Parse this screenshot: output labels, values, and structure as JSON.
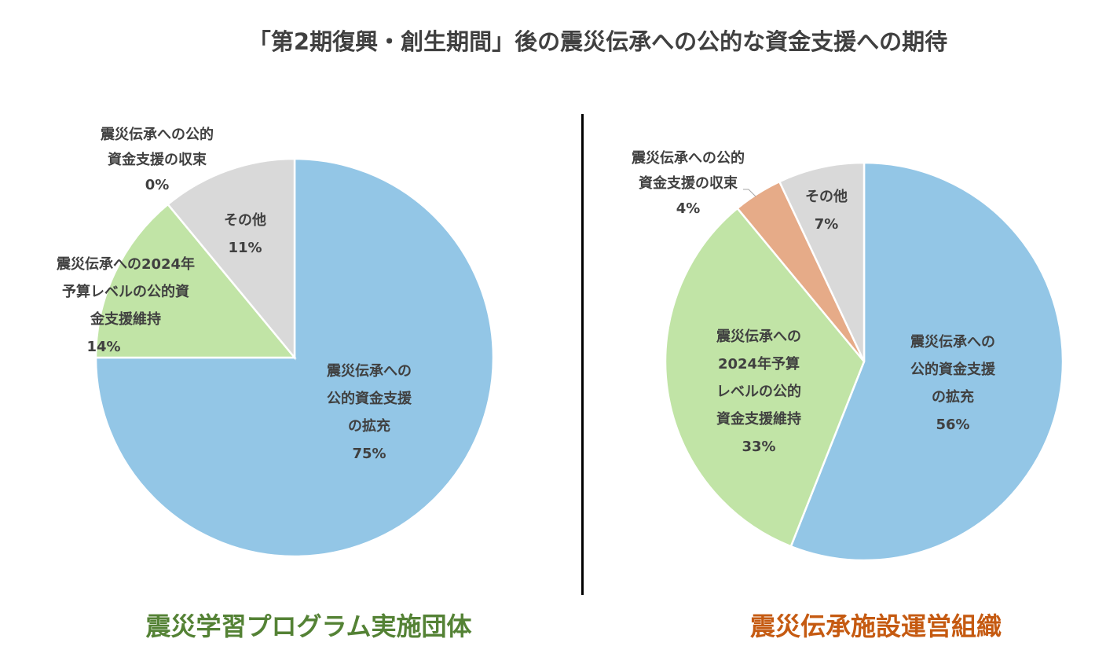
{
  "title": "「第2期復興・創生期間」後の震災伝承への公的な資金支援への期待",
  "chart_data": [
    {
      "type": "pie",
      "title": "震災学習プログラム実施団体",
      "title_color": "#548235",
      "slices": [
        {
          "label_lines": [
            "震災伝承への",
            "公的資金支援",
            "の拡充"
          ],
          "value": 75,
          "pct": "75%",
          "color": "#93C6E6"
        },
        {
          "label_lines": [
            "震災伝承への2024年",
            "予算レベルの公的資",
            "金支援維持"
          ],
          "value": 14,
          "pct": "14%",
          "color": "#C1E4A6"
        },
        {
          "label_lines": [
            "震災伝承への公的",
            "資金支援の収束"
          ],
          "value": 0,
          "pct": "0%",
          "color": "#E6AB88"
        },
        {
          "label_lines": [
            "その他"
          ],
          "value": 11,
          "pct": "11%",
          "color": "#D9D9D9"
        }
      ]
    },
    {
      "type": "pie",
      "title": "震災伝承施設運営組織",
      "title_color": "#C55A11",
      "slices": [
        {
          "label_lines": [
            "震災伝承への",
            "公的資金支援",
            "の拡充"
          ],
          "value": 56,
          "pct": "56%",
          "color": "#93C6E6"
        },
        {
          "label_lines": [
            "震災伝承への",
            "2024年予算",
            "レベルの公的",
            "資金支援維持"
          ],
          "value": 33,
          "pct": "33%",
          "color": "#C1E4A6"
        },
        {
          "label_lines": [
            "震災伝承への公的",
            "資金支援の収束"
          ],
          "value": 4,
          "pct": "4%",
          "color": "#E6AB88"
        },
        {
          "label_lines": [
            "その他"
          ],
          "value": 7,
          "pct": "7%",
          "color": "#D9D9D9"
        }
      ]
    }
  ]
}
